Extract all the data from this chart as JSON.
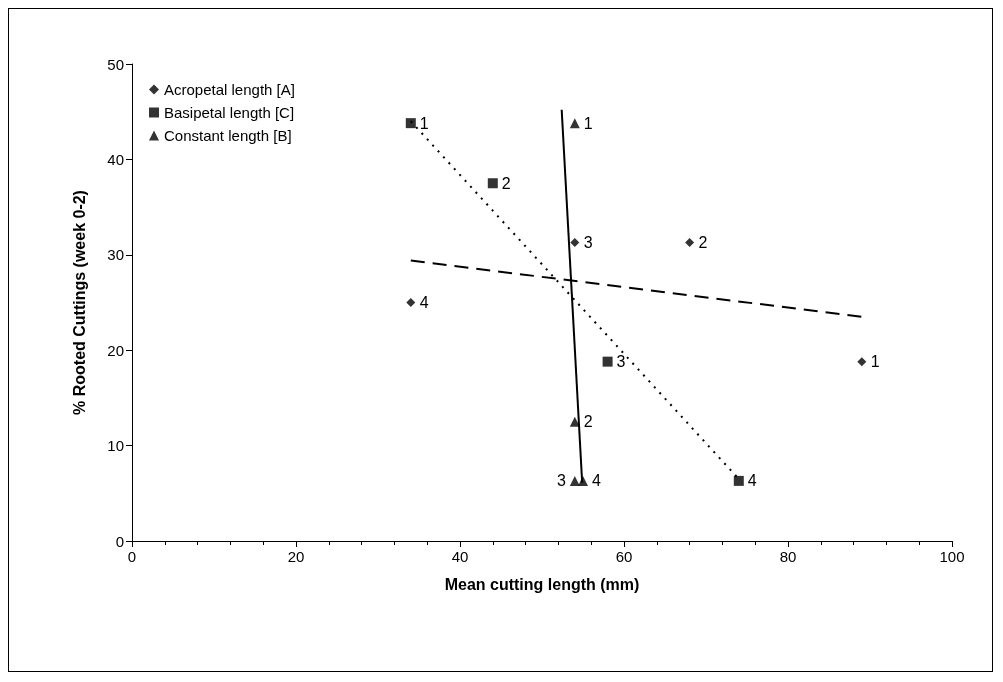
{
  "chart_data": {
    "type": "scatter",
    "xlabel": "Mean cutting length (mm)",
    "ylabel": "% Rooted Cuttings (week 0-2)",
    "xlim": [
      0,
      100
    ],
    "xticks": [
      0,
      20,
      40,
      60,
      80,
      100
    ],
    "ylim": [
      0,
      50
    ],
    "yticks": [
      0,
      10,
      20,
      30,
      40,
      50
    ],
    "grid": false,
    "legend": "top left",
    "series": [
      {
        "name": "Acropetal length [A]",
        "color": "#000000",
        "marker": "diamond",
        "x": [
          89,
          68,
          54,
          34
        ],
        "values": [
          18.8,
          31.3,
          31.3,
          25
        ]
      },
      {
        "name": "Basipetal length [C]",
        "color": "#000000",
        "marker": "square",
        "x": [
          34,
          44,
          58,
          74
        ],
        "values": [
          43.8,
          37.5,
          18.8,
          6.3
        ]
      },
      {
        "name": "Constant length [B]",
        "color": "#000000",
        "marker": "triangle",
        "x": [
          54,
          54,
          54,
          55
        ],
        "values": [
          43.8,
          12.5,
          6.3,
          6.3
        ]
      },
      {
        "type": "line",
        "color": "#000000",
        "line_style": "dashed",
        "marker": "none",
        "x": [
          34,
          89
        ],
        "values": [
          29.4,
          23.5
        ]
      },
      {
        "type": "line",
        "color": "#000000",
        "line_style": "dotted",
        "marker": "none",
        "x": [
          34,
          74
        ],
        "values": [
          44,
          6.5
        ]
      },
      {
        "type": "line",
        "color": "#000000",
        "line_style": "solid",
        "marker": "none",
        "x": [
          52.4,
          54.9
        ],
        "values": [
          45.2,
          6.1
        ]
      }
    ],
    "annotations": [
      {
        "text": "1",
        "x": 89,
        "y": 18.8
      },
      {
        "text": "2",
        "x": 68,
        "y": 31.3
      },
      {
        "text": "3",
        "x": 54,
        "y": 31.3
      },
      {
        "text": "4",
        "x": 34,
        "y": 25
      },
      {
        "text": "1",
        "x": 34,
        "y": 43.8
      },
      {
        "text": "2",
        "x": 44,
        "y": 37.5
      },
      {
        "text": "3",
        "x": 58,
        "y": 18.8
      },
      {
        "text": "4",
        "x": 74,
        "y": 6.3
      },
      {
        "text": "1",
        "x": 54,
        "y": 43.8
      },
      {
        "text": "2",
        "x": 54,
        "y": 12.5
      },
      {
        "text": "3",
        "x": 54,
        "y": 6.3
      },
      {
        "text": "4",
        "x": 55,
        "y": 6.3
      }
    ]
  }
}
